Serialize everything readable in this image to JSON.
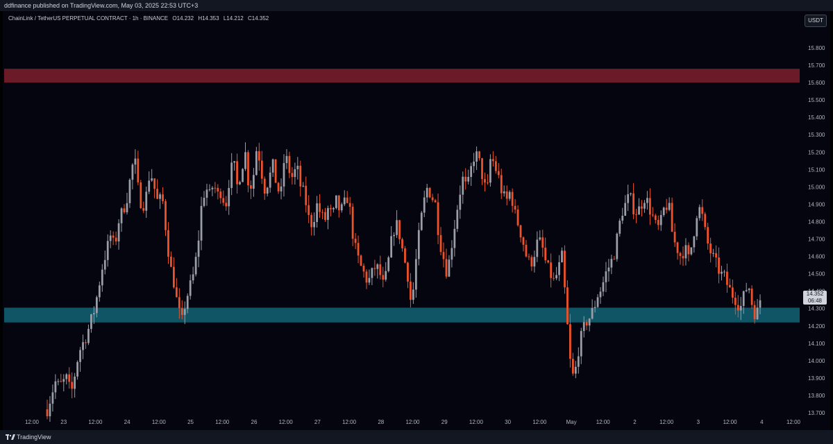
{
  "header": {
    "published": "ddfinance published on TradingView.com, May 03, 2025 22:53 UTC+3"
  },
  "legend": {
    "symbol": "ChainLink / TetherUS PERPETUAL CONTRACT · 1h · BINANCE",
    "open": "O14.232",
    "high": "H14.353",
    "low": "L14.212",
    "close": "C14.352"
  },
  "currency_button": "USDT",
  "footer": {
    "brand": "TradingView"
  },
  "colors": {
    "up": "#9a9ea8",
    "down": "#f0522a",
    "resistance": "#6b1a28",
    "support": "#0f5566",
    "background": "#05050f"
  },
  "chart_data": {
    "type": "candlestick",
    "ylim": [
      13.7,
      15.85
    ],
    "y_ticks": [
      15.8,
      15.7,
      15.6,
      15.5,
      15.4,
      15.3,
      15.2,
      15.1,
      15.0,
      14.9,
      14.8,
      14.7,
      14.6,
      14.5,
      14.4,
      14.3,
      14.2,
      14.1,
      14.0,
      13.9,
      13.8,
      13.7
    ],
    "y_tick_labels": [
      "15.800",
      "15.700",
      "15.600",
      "15.500",
      "15.400",
      "15.300",
      "15.200",
      "15.100",
      "15.000",
      "14.900",
      "14.800",
      "14.700",
      "14.600",
      "14.500",
      "14.400",
      "14.300",
      "14.200",
      "14.100",
      "14.000",
      "13.900",
      "13.800",
      "13.700"
    ],
    "x_tick_labels": [
      "12:00",
      "23",
      "12:00",
      "24",
      "12:00",
      "25",
      "12:00",
      "26",
      "12:00",
      "27",
      "12:00",
      "28",
      "12:00",
      "29",
      "12:00",
      "30",
      "12:00",
      "May",
      "12:00",
      "2",
      "12:00",
      "3",
      "12:00",
      "4",
      "12:00"
    ],
    "zones": [
      {
        "name": "resistance",
        "from": 15.6,
        "to": 15.68
      },
      {
        "name": "support",
        "from": 14.22,
        "to": 14.305
      }
    ],
    "last_price": "14.352",
    "countdown": "06:48",
    "close_path": [
      [
        0,
        13.72
      ],
      [
        2,
        13.88
      ],
      [
        3,
        13.85
      ],
      [
        5,
        13.9
      ],
      [
        6,
        13.8
      ],
      [
        8,
        14.05
      ],
      [
        10,
        14.15
      ],
      [
        12,
        14.3
      ],
      [
        14,
        14.55
      ],
      [
        16,
        14.72
      ],
      [
        17,
        14.65
      ],
      [
        18,
        14.8
      ],
      [
        20,
        14.92
      ],
      [
        21,
        15.05
      ],
      [
        22,
        15.18
      ],
      [
        23,
        14.98
      ],
      [
        24,
        14.88
      ],
      [
        25,
        14.95
      ],
      [
        26,
        15.1
      ],
      [
        27,
        15.0
      ],
      [
        28,
        14.9
      ],
      [
        29,
        14.95
      ],
      [
        30,
        14.75
      ],
      [
        31,
        14.55
      ],
      [
        32,
        14.45
      ],
      [
        33,
        14.3
      ],
      [
        34,
        14.22
      ],
      [
        35,
        14.35
      ],
      [
        36,
        14.42
      ],
      [
        37,
        14.5
      ],
      [
        38,
        14.65
      ],
      [
        39,
        14.9
      ],
      [
        40,
        15.0
      ],
      [
        41,
        14.95
      ],
      [
        42,
        15.02
      ],
      [
        43,
        14.95
      ],
      [
        44,
        14.98
      ],
      [
        45,
        14.88
      ],
      [
        46,
        15.05
      ],
      [
        47,
        15.15
      ],
      [
        48,
        15.0
      ],
      [
        49,
        15.1
      ],
      [
        50,
        15.2
      ],
      [
        51,
        14.98
      ],
      [
        52,
        15.05
      ],
      [
        53,
        15.25
      ],
      [
        54,
        15.1
      ],
      [
        55,
        14.98
      ],
      [
        56,
        15.05
      ],
      [
        57,
        15.12
      ],
      [
        58,
        15.0
      ],
      [
        59,
        14.95
      ],
      [
        60,
        15.2
      ],
      [
        61,
        15.1
      ],
      [
        62,
        15.05
      ],
      [
        63,
        15.12
      ],
      [
        64,
        15.0
      ],
      [
        65,
        14.95
      ],
      [
        66,
        14.82
      ],
      [
        67,
        14.78
      ],
      [
        68,
        14.9
      ],
      [
        69,
        14.85
      ],
      [
        70,
        14.8
      ],
      [
        71,
        14.88
      ],
      [
        72,
        14.82
      ],
      [
        73,
        14.92
      ],
      [
        74,
        14.85
      ],
      [
        75,
        14.9
      ],
      [
        76,
        14.95
      ],
      [
        77,
        14.75
      ],
      [
        78,
        14.62
      ],
      [
        79,
        14.55
      ],
      [
        80,
        14.5
      ],
      [
        81,
        14.45
      ],
      [
        82,
        14.5
      ],
      [
        83,
        14.55
      ],
      [
        84,
        14.5
      ],
      [
        85,
        14.42
      ],
      [
        86,
        14.55
      ],
      [
        87,
        14.7
      ],
      [
        88,
        14.8
      ],
      [
        89,
        14.72
      ],
      [
        90,
        14.6
      ],
      [
        91,
        14.5
      ],
      [
        92,
        14.3
      ],
      [
        93,
        14.55
      ],
      [
        94,
        14.75
      ],
      [
        95,
        14.9
      ],
      [
        96,
        15.0
      ],
      [
        97,
        14.95
      ],
      [
        98,
        14.9
      ],
      [
        99,
        14.7
      ],
      [
        100,
        14.6
      ],
      [
        101,
        14.5
      ],
      [
        102,
        14.65
      ],
      [
        103,
        14.8
      ],
      [
        104,
        14.95
      ],
      [
        105,
        15.05
      ],
      [
        106,
        14.98
      ],
      [
        107,
        15.1
      ],
      [
        108,
        15.2
      ],
      [
        109,
        15.15
      ],
      [
        110,
        15.05
      ],
      [
        111,
        14.95
      ],
      [
        112,
        15.18
      ],
      [
        113,
        15.12
      ],
      [
        114,
        15.05
      ],
      [
        115,
        14.95
      ],
      [
        116,
        14.92
      ],
      [
        117,
        14.98
      ],
      [
        118,
        14.85
      ],
      [
        119,
        14.78
      ],
      [
        120,
        14.7
      ],
      [
        121,
        14.6
      ],
      [
        122,
        14.55
      ],
      [
        123,
        14.62
      ],
      [
        124,
        14.7
      ],
      [
        125,
        14.65
      ],
      [
        126,
        14.55
      ],
      [
        127,
        14.5
      ],
      [
        128,
        14.45
      ],
      [
        129,
        14.52
      ],
      [
        130,
        14.6
      ],
      [
        131,
        14.3
      ],
      [
        132,
        14.0
      ],
      [
        133,
        13.88
      ],
      [
        134,
        14.05
      ],
      [
        135,
        14.15
      ],
      [
        136,
        14.22
      ],
      [
        137,
        14.25
      ],
      [
        138,
        14.3
      ],
      [
        139,
        14.38
      ],
      [
        140,
        14.42
      ],
      [
        141,
        14.5
      ],
      [
        142,
        14.55
      ],
      [
        143,
        14.6
      ],
      [
        144,
        14.72
      ],
      [
        145,
        14.85
      ],
      [
        146,
        14.9
      ],
      [
        147,
        14.95
      ],
      [
        148,
        14.88
      ],
      [
        149,
        14.85
      ],
      [
        150,
        14.9
      ],
      [
        151,
        14.95
      ],
      [
        152,
        14.88
      ],
      [
        153,
        14.82
      ],
      [
        154,
        14.75
      ],
      [
        155,
        14.8
      ],
      [
        156,
        14.9
      ],
      [
        157,
        14.88
      ],
      [
        158,
        14.7
      ],
      [
        159,
        14.65
      ],
      [
        160,
        14.6
      ],
      [
        161,
        14.65
      ],
      [
        162,
        14.58
      ],
      [
        163,
        14.7
      ],
      [
        164,
        14.85
      ],
      [
        165,
        14.88
      ],
      [
        166,
        14.75
      ],
      [
        167,
        14.65
      ],
      [
        168,
        14.6
      ],
      [
        169,
        14.55
      ],
      [
        170,
        14.5
      ],
      [
        171,
        14.48
      ],
      [
        172,
        14.42
      ],
      [
        173,
        14.38
      ],
      [
        174,
        14.35
      ],
      [
        175,
        14.3
      ],
      [
        176,
        14.38
      ],
      [
        177,
        14.45
      ],
      [
        178,
        14.32
      ],
      [
        179,
        14.25
      ],
      [
        180,
        14.352
      ]
    ]
  }
}
